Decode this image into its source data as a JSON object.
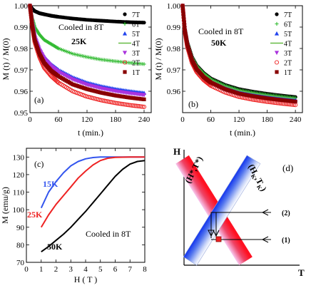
{
  "colors": {
    "7T": "#000000",
    "6T": "#33bb33",
    "5T": "#2244ee",
    "4T": "#66bb44",
    "3T": "#aa33dd",
    "2T": "#ee2222",
    "1T": "#880000",
    "h15": "#3355ee",
    "h25": "#ee2222",
    "h50": "#000000"
  },
  "legend_labels": [
    "7T",
    "6T",
    "5T",
    "4T",
    "3T",
    "2T",
    "1T"
  ],
  "chart_data": [
    {
      "type": "scatter",
      "panel_label": "(a)",
      "annotation_line1": "Cooled in 8T",
      "annotation_line2": "25K",
      "xlabel": "t (min.)",
      "ylabel": "M (t) / M(0)",
      "xlim": [
        0,
        255
      ],
      "ylim": [
        0.95,
        1.0
      ],
      "xticks": [
        0,
        60,
        120,
        180,
        240
      ],
      "yticks": [
        0.95,
        0.96,
        0.97,
        0.98,
        0.99,
        1.0
      ],
      "ytick_labels": [
        "0.95",
        "0.96",
        "0.97",
        "0.98",
        "0.99",
        "1.00"
      ],
      "legend_position": "top-right",
      "series": [
        {
          "name": "7T",
          "marker": "circle",
          "x": [
            0,
            5,
            10,
            20,
            30,
            45,
            60,
            90,
            120,
            150,
            180,
            210,
            240
          ],
          "y": [
            1.0,
            0.9985,
            0.9975,
            0.9965,
            0.996,
            0.9953,
            0.9948,
            0.994,
            0.9934,
            0.993,
            0.9926,
            0.9923,
            0.9921
          ]
        },
        {
          "name": "6T",
          "marker": "plus",
          "x": [
            0,
            5,
            10,
            20,
            30,
            45,
            60,
            90,
            120,
            150,
            180,
            210,
            240
          ],
          "y": [
            1.0,
            0.994,
            0.99,
            0.9865,
            0.984,
            0.982,
            0.98,
            0.9775,
            0.976,
            0.9748,
            0.974,
            0.9733,
            0.9727
          ]
        },
        {
          "name": "5T",
          "marker": "triangle-up",
          "x": [
            0,
            5,
            10,
            20,
            30,
            45,
            60,
            90,
            120,
            150,
            180,
            210,
            240
          ],
          "y": [
            1.0,
            0.992,
            0.986,
            0.98,
            0.976,
            0.9725,
            0.97,
            0.9665,
            0.964,
            0.9623,
            0.961,
            0.96,
            0.9592
          ]
        },
        {
          "name": "4T",
          "marker": "line",
          "x": [
            0,
            5,
            10,
            20,
            30,
            45,
            60,
            90,
            120,
            150,
            180,
            210,
            240
          ],
          "y": [
            1.0,
            0.9918,
            0.9858,
            0.9798,
            0.9758,
            0.9722,
            0.9696,
            0.966,
            0.9636,
            0.9619,
            0.9605,
            0.9595,
            0.9587
          ]
        },
        {
          "name": "3T",
          "marker": "triangle-down",
          "x": [
            0,
            5,
            10,
            20,
            30,
            45,
            60,
            90,
            120,
            150,
            180,
            210,
            240
          ],
          "y": [
            1.0,
            0.9915,
            0.9855,
            0.9793,
            0.9752,
            0.9716,
            0.969,
            0.9655,
            0.963,
            0.9613,
            0.96,
            0.959,
            0.9582
          ]
        },
        {
          "name": "2T",
          "marker": "circle-open",
          "x": [
            0,
            5,
            10,
            20,
            30,
            45,
            60,
            90,
            120,
            150,
            180,
            210,
            240
          ],
          "y": [
            1.0,
            0.99,
            0.983,
            0.976,
            0.971,
            0.967,
            0.964,
            0.96,
            0.9575,
            0.9558,
            0.9545,
            0.9535,
            0.9527
          ]
        },
        {
          "name": "1T",
          "marker": "square",
          "x": [
            0,
            5,
            10,
            20,
            30,
            45,
            60,
            90,
            120,
            150,
            180,
            210,
            240
          ],
          "y": [
            1.0,
            0.9905,
            0.984,
            0.9775,
            0.9732,
            0.9695,
            0.967,
            0.9632,
            0.961,
            0.9593,
            0.958,
            0.957,
            0.9562
          ]
        }
      ]
    },
    {
      "type": "scatter",
      "panel_label": "(b)",
      "annotation_line1": "Cooled in 8T",
      "annotation_line2": "50K",
      "xlabel": "t (min.)",
      "ylabel": "M (t) / M(0)",
      "xlim": [
        0,
        255
      ],
      "ylim": [
        0.95,
        1.0
      ],
      "xticks": [
        0,
        60,
        120,
        180,
        240
      ],
      "yticks": [
        0.96,
        0.97,
        0.98,
        0.99,
        1.0
      ],
      "ytick_labels": [
        "0.96",
        "0.97",
        "0.98",
        "0.99",
        "1.00"
      ],
      "legend_position": "top-right",
      "series": [
        {
          "name": "7T",
          "marker": "circle",
          "x": [
            0,
            5,
            10,
            20,
            30,
            45,
            60,
            90,
            120,
            150,
            180,
            210,
            240
          ],
          "y": [
            1.0,
            0.989,
            0.983,
            0.976,
            0.972,
            0.9685,
            0.966,
            0.963,
            0.961,
            0.9598,
            0.9588,
            0.958,
            0.9573
          ]
        },
        {
          "name": "6T",
          "marker": "plus",
          "x": [
            0,
            5,
            10,
            20,
            30,
            45,
            60,
            90,
            120,
            150,
            180,
            210,
            240
          ],
          "y": [
            1.0,
            0.989,
            0.9828,
            0.9758,
            0.9718,
            0.9682,
            0.9657,
            0.9627,
            0.9606,
            0.9594,
            0.9584,
            0.9576,
            0.9569
          ]
        },
        {
          "name": "5T",
          "marker": "triangle-up",
          "x": [
            0,
            5,
            10,
            20,
            30,
            45,
            60,
            90,
            120,
            150,
            180,
            210,
            240
          ],
          "y": [
            1.0,
            0.9885,
            0.9822,
            0.975,
            0.971,
            0.9673,
            0.9648,
            0.9618,
            0.9597,
            0.9585,
            0.9575,
            0.9567,
            0.956
          ]
        },
        {
          "name": "4T",
          "marker": "line",
          "x": [
            0,
            5,
            10,
            20,
            30,
            45,
            60,
            90,
            120,
            150,
            180,
            210,
            240
          ],
          "y": [
            1.0,
            0.9888,
            0.9826,
            0.9756,
            0.9716,
            0.968,
            0.9654,
            0.9624,
            0.9603,
            0.9591,
            0.9581,
            0.9573,
            0.9566
          ]
        },
        {
          "name": "3T",
          "marker": "triangle-down",
          "x": [
            0,
            5,
            10,
            20,
            30,
            45,
            60,
            90,
            120,
            150,
            180,
            210,
            240
          ],
          "y": [
            1.0,
            0.988,
            0.9815,
            0.9742,
            0.97,
            0.9662,
            0.9637,
            0.9606,
            0.9585,
            0.9573,
            0.9563,
            0.9555,
            0.9548
          ]
        },
        {
          "name": "2T",
          "marker": "circle-open",
          "x": [
            0,
            5,
            10,
            20,
            30,
            45,
            60,
            90,
            120,
            150,
            180,
            210,
            240
          ],
          "y": [
            1.0,
            0.9875,
            0.9808,
            0.9733,
            0.969,
            0.9652,
            0.9626,
            0.9595,
            0.9574,
            0.9561,
            0.9551,
            0.9543,
            0.9536
          ]
        },
        {
          "name": "1T",
          "marker": "square",
          "x": [
            0,
            5,
            10,
            20,
            30,
            45,
            60,
            90,
            120,
            150,
            180,
            210,
            240
          ],
          "y": [
            1.0,
            0.9882,
            0.9818,
            0.9745,
            0.9703,
            0.9666,
            0.9641,
            0.961,
            0.9589,
            0.9577,
            0.9567,
            0.9559,
            0.9552
          ]
        }
      ]
    },
    {
      "type": "line",
      "panel_label": "(c)",
      "annotation": "Cooled in 8T",
      "xlabel": "H ( T )",
      "ylabel": "M (emu/g)",
      "xlim": [
        0,
        8
      ],
      "ylim": [
        70,
        135
      ],
      "xticks": [
        0,
        1,
        2,
        3,
        4,
        5,
        6,
        7,
        8
      ],
      "yticks": [
        70,
        80,
        90,
        100,
        110,
        120,
        130
      ],
      "series": [
        {
          "name": "15K",
          "label_color": "#3355ee",
          "x": [
            1,
            1.5,
            2,
            2.5,
            3,
            3.5,
            4,
            4.5,
            5,
            5.5,
            6,
            7,
            8
          ],
          "y": [
            101,
            110,
            116,
            121,
            125,
            127.5,
            129,
            129.7,
            130,
            130,
            130,
            130,
            130
          ]
        },
        {
          "name": "25K",
          "label_color": "#ee2222",
          "x": [
            1,
            1.5,
            2,
            2.5,
            3,
            3.5,
            4,
            4.5,
            5,
            5.5,
            6,
            7,
            8
          ],
          "y": [
            90,
            97,
            103,
            108,
            113,
            118,
            122,
            125.5,
            128,
            129.3,
            129.8,
            130,
            130
          ]
        },
        {
          "name": "50K",
          "label_color": "#000000",
          "x": [
            1,
            1.5,
            2,
            2.5,
            3,
            3.5,
            4,
            4.5,
            5,
            5.5,
            6,
            6.5,
            7,
            7.5,
            8
          ],
          "y": [
            76,
            79,
            82.5,
            86,
            90,
            94.5,
            99,
            104,
            109,
            114,
            119,
            123,
            126,
            127.5,
            128
          ]
        }
      ]
    }
  ],
  "diagram_d": {
    "panel_label": "(d)",
    "y_axis_label": "H",
    "x_axis_label": "T",
    "band1_label": "(H*,T*)",
    "band2_label": "(H",
    "band2_sub1": "K",
    "band2_sep": ",T",
    "band2_sub2": "K",
    "band2_close": ")",
    "arrow1_label": "(1)",
    "arrow2_label": "(2)"
  }
}
